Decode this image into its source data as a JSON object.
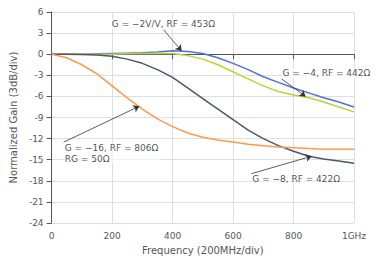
{
  "chart_data": {
    "type": "line",
    "xlabel": "Frequency (200MHz/div)",
    "ylabel": "Normalized Gain (3dB/div)",
    "x": [
      0,
      50,
      100,
      150,
      200,
      250,
      300,
      350,
      400,
      450,
      500,
      550,
      600,
      650,
      700,
      750,
      800,
      850,
      900,
      950,
      1000
    ],
    "series": [
      {
        "values": [
          0,
          0.0,
          0.0,
          0.05,
          0.1,
          0.15,
          0.2,
          0.3,
          0.5,
          0.4,
          0.1,
          -0.5,
          -1.3,
          -2.2,
          -3.2,
          -4.0,
          -4.8,
          -5.5,
          -6.2,
          -6.8,
          -7.5
        ]
      },
      {
        "values": [
          0,
          0.0,
          0.0,
          0.0,
          0.0,
          0.05,
          0.1,
          0.15,
          0.1,
          -0.2,
          -0.7,
          -1.5,
          -2.5,
          -3.5,
          -4.5,
          -5.3,
          -5.8,
          -6.2,
          -6.8,
          -7.5,
          -8.2
        ]
      },
      {
        "values": [
          0,
          0.0,
          -0.05,
          -0.1,
          -0.3,
          -0.7,
          -1.3,
          -2.2,
          -3.3,
          -4.8,
          -6.3,
          -7.8,
          -9.3,
          -10.8,
          -12.0,
          -13.0,
          -13.8,
          -14.5,
          -14.9,
          -15.2,
          -15.5
        ]
      },
      {
        "values": [
          0,
          -0.5,
          -1.5,
          -2.8,
          -4.5,
          -6.2,
          -7.8,
          -9.2,
          -10.3,
          -11.2,
          -11.8,
          -12.2,
          -12.5,
          -12.8,
          -13.0,
          -13.2,
          -13.3,
          -13.4,
          -13.5,
          -13.5,
          -13.5
        ]
      }
    ],
    "xlim": [
      0,
      1000
    ],
    "ylim": [
      -24,
      6
    ],
    "xticks": [
      0,
      200,
      400,
      600,
      800,
      {
        "value": 1000,
        "label": "1GHz"
      }
    ],
    "yticks": [
      -24,
      -21,
      -18,
      -15,
      -12,
      -9,
      -6,
      -3,
      0,
      3,
      6
    ],
    "grid": true,
    "annotations": [
      {
        "text": "G = −2V/V, RF = 453Ω",
        "xy": [
          430,
          0.45
        ],
        "xytext": [
          370,
          3.5
        ],
        "align": "center"
      },
      {
        "text": "G = −4, RF = 442Ω",
        "xy": [
          840,
          -6.0
        ],
        "xytext": [
          760,
          -3.5
        ],
        "align": "left"
      },
      {
        "text": "G = −8, RF = 422Ω",
        "xy": [
          860,
          -14.5
        ],
        "xytext": [
          660,
          -17.0
        ],
        "align": "left"
      },
      {
        "text": "G = −16, RF = 806Ω\nRG = 50Ω",
        "xy": [
          290,
          -7.4
        ],
        "xytext": [
          40,
          -12.5
        ],
        "align": "left"
      }
    ]
  }
}
